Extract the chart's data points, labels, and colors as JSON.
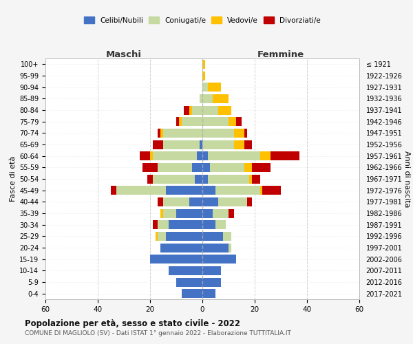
{
  "age_groups": [
    "0-4",
    "5-9",
    "10-14",
    "15-19",
    "20-24",
    "25-29",
    "30-34",
    "35-39",
    "40-44",
    "45-49",
    "50-54",
    "55-59",
    "60-64",
    "65-69",
    "70-74",
    "75-79",
    "80-84",
    "85-89",
    "90-94",
    "95-99",
    "100+"
  ],
  "birth_years": [
    "2017-2021",
    "2012-2016",
    "2007-2011",
    "2002-2006",
    "1997-2001",
    "1992-1996",
    "1987-1991",
    "1982-1986",
    "1977-1981",
    "1972-1976",
    "1967-1971",
    "1962-1966",
    "1957-1961",
    "1952-1956",
    "1947-1951",
    "1942-1946",
    "1937-1941",
    "1932-1936",
    "1927-1931",
    "1922-1926",
    "≤ 1921"
  ],
  "male": {
    "celibi": [
      8,
      10,
      13,
      20,
      16,
      14,
      13,
      10,
      5,
      14,
      3,
      4,
      2,
      1,
      0,
      0,
      0,
      0,
      0,
      0,
      0
    ],
    "coniugati": [
      0,
      0,
      0,
      0,
      0,
      3,
      4,
      5,
      10,
      19,
      16,
      13,
      17,
      14,
      15,
      8,
      4,
      1,
      0,
      0,
      0
    ],
    "vedovi": [
      0,
      0,
      0,
      0,
      0,
      1,
      0,
      1,
      0,
      0,
      0,
      0,
      1,
      0,
      1,
      1,
      1,
      0,
      0,
      0,
      0
    ],
    "divorziati": [
      0,
      0,
      0,
      0,
      0,
      0,
      2,
      0,
      2,
      2,
      2,
      6,
      4,
      4,
      1,
      1,
      2,
      0,
      0,
      0,
      0
    ]
  },
  "female": {
    "nubili": [
      5,
      7,
      7,
      13,
      10,
      8,
      5,
      4,
      6,
      5,
      2,
      3,
      2,
      0,
      0,
      0,
      0,
      0,
      0,
      0,
      0
    ],
    "coniugate": [
      0,
      0,
      0,
      0,
      1,
      3,
      4,
      6,
      11,
      17,
      16,
      13,
      20,
      12,
      12,
      10,
      6,
      4,
      2,
      0,
      0
    ],
    "vedove": [
      0,
      0,
      0,
      0,
      0,
      0,
      0,
      0,
      0,
      1,
      1,
      3,
      4,
      4,
      4,
      3,
      5,
      6,
      5,
      1,
      1
    ],
    "divorziate": [
      0,
      0,
      0,
      0,
      0,
      0,
      0,
      2,
      2,
      7,
      3,
      7,
      11,
      3,
      1,
      2,
      0,
      0,
      0,
      0,
      0
    ]
  },
  "colors": {
    "celibi": "#4472c4",
    "coniugati": "#c5d9a0",
    "vedovi": "#ffc000",
    "divorziati": "#c00000"
  },
  "xlim": 60,
  "title": "Popolazione per età, sesso e stato civile - 2022",
  "subtitle": "COMUNE DI MAGLIOLO (SV) - Dati ISTAT 1° gennaio 2022 - Elaborazione TUTTITALIA.IT",
  "ylabel_left": "Fasce di età",
  "ylabel_right": "Anni di nascita",
  "xlabel_left": "Maschi",
  "xlabel_right": "Femmine",
  "legend_labels": [
    "Celibi/Nubili",
    "Coniugati/e",
    "Vedovi/e",
    "Divorziati/e"
  ],
  "bg_color": "#f5f5f5",
  "plot_bg_color": "#ffffff",
  "grid_color": "#cccccc"
}
